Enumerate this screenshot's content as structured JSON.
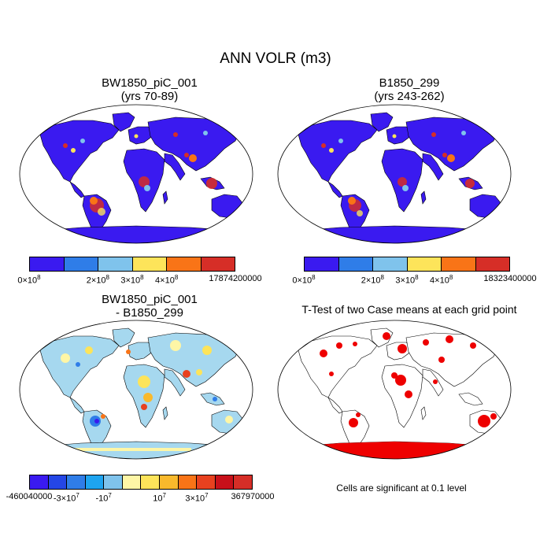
{
  "title": "ANN VOLR (m3)",
  "panels": [
    {
      "id": "case1",
      "title_line1": "BW1850_piC_001",
      "title_line2": "(yrs 70-89)",
      "colorbar": {
        "colors": [
          "#3a1af0",
          "#2f7de8",
          "#7fc3ec",
          "#fde45a",
          "#f97417",
          "#d62e27"
        ],
        "labels": [
          {
            "text": "0×10",
            "sup": "8"
          },
          {
            "text": "2×10",
            "sup": "8"
          },
          {
            "text": "3×10",
            "sup": "8"
          },
          {
            "text": "4×10",
            "sup": "8"
          },
          {
            "text": "17874200000",
            "sup": ""
          }
        ]
      }
    },
    {
      "id": "case2",
      "title_line1": "B1850_299",
      "title_line2": "(yrs 243-262)",
      "colorbar": {
        "colors": [
          "#3a1af0",
          "#2f7de8",
          "#7fc3ec",
          "#fde45a",
          "#f97417",
          "#d62e27"
        ],
        "labels": [
          {
            "text": "0×10",
            "sup": "8"
          },
          {
            "text": "2×10",
            "sup": "8"
          },
          {
            "text": "3×10",
            "sup": "8"
          },
          {
            "text": "4×10",
            "sup": "8"
          },
          {
            "text": "18323400000",
            "sup": ""
          }
        ]
      }
    },
    {
      "id": "diff",
      "title_line1": "BW1850_piC_001",
      "title_line2": "- B1850_299",
      "colorbar": {
        "colors": [
          "#3a1af0",
          "#2446e6",
          "#2f7de8",
          "#1ea4f0",
          "#7fc3ec",
          "#fef6a6",
          "#fde45a",
          "#f9b92c",
          "#f97417",
          "#e8411f",
          "#c8101a",
          "#d62e27"
        ],
        "labels": [
          {
            "text": "-460040000",
            "sup": ""
          },
          {
            "text": "-3×10",
            "sup": "7"
          },
          {
            "text": "-10",
            "sup": "7"
          },
          {
            "text": "10",
            "sup": "7"
          },
          {
            "text": "3×10",
            "sup": "7"
          },
          {
            "text": "367970000",
            "sup": ""
          }
        ]
      }
    },
    {
      "id": "ttest",
      "title_line1": "T-Test of two Case means at each grid point",
      "note": "Cells are significant at 0.1 level"
    }
  ],
  "colors": {
    "significant": "#ee0000",
    "diff_land": "#a6d8ef",
    "antarctica_case": "#3a1af0"
  }
}
